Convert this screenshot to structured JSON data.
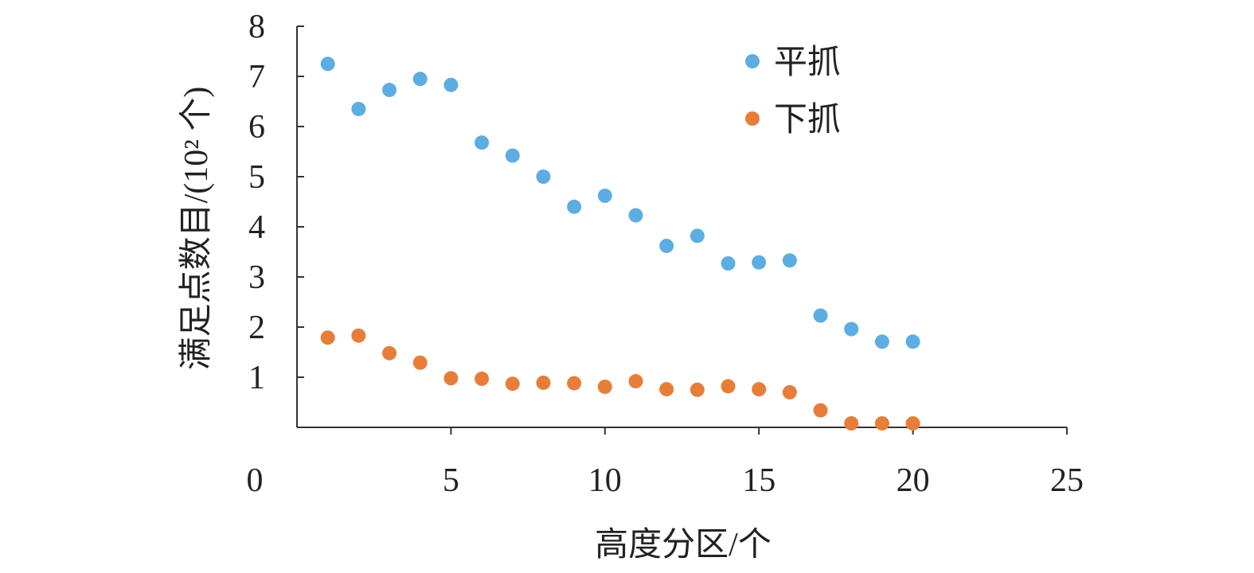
{
  "chart_data": {
    "type": "scatter",
    "title": "",
    "xlabel": "高度分区/个",
    "ylabel": "满足点数目/(10² 个)",
    "xlim": [
      0,
      25
    ],
    "ylim": [
      0,
      8
    ],
    "x_ticks": [
      "0",
      "5",
      "10",
      "15",
      "20",
      "25"
    ],
    "y_ticks": [
      "1",
      "2",
      "3",
      "4",
      "5",
      "6",
      "7",
      "8"
    ],
    "grid": false,
    "legend_position": "top-right",
    "series": [
      {
        "name": "平抓",
        "color": "#5dade2",
        "x": [
          1,
          2,
          3,
          4,
          5,
          6,
          7,
          8,
          9,
          10,
          11,
          12,
          13,
          14,
          15,
          16,
          17,
          18,
          19,
          20
        ],
        "y": [
          7.25,
          6.35,
          6.73,
          6.95,
          6.83,
          5.68,
          5.42,
          5.0,
          4.4,
          4.62,
          4.23,
          3.62,
          3.82,
          3.27,
          3.29,
          3.33,
          2.23,
          1.96,
          1.71,
          1.71
        ]
      },
      {
        "name": "下抓",
        "color": "#e67e3a",
        "x": [
          1,
          2,
          3,
          4,
          5,
          6,
          7,
          8,
          9,
          10,
          11,
          12,
          13,
          14,
          15,
          16,
          17,
          18,
          19,
          20
        ],
        "y": [
          1.79,
          1.83,
          1.48,
          1.29,
          0.98,
          0.97,
          0.87,
          0.89,
          0.88,
          0.81,
          0.92,
          0.76,
          0.75,
          0.82,
          0.76,
          0.7,
          0.34,
          0.08,
          0.08,
          0.08
        ]
      }
    ]
  }
}
